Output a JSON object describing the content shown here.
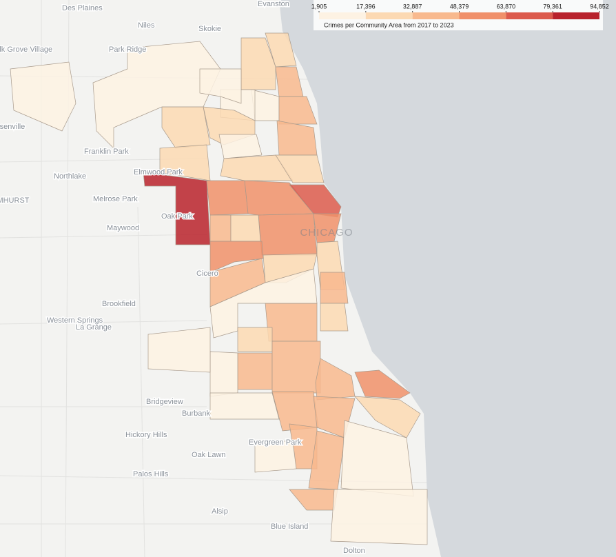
{
  "legend": {
    "title": "Crimes per Community Area from 2017 to 2023",
    "ticks": [
      {
        "value": 1905,
        "label": "1,905"
      },
      {
        "value": 17396,
        "label": "17,396"
      },
      {
        "value": 32887,
        "label": "32,887"
      },
      {
        "value": 48379,
        "label": "48,379"
      },
      {
        "value": 63870,
        "label": "63,870"
      },
      {
        "value": 79361,
        "label": "79,361"
      },
      {
        "value": 94852,
        "label": "94,852"
      }
    ],
    "colors": [
      "#fdf2e3",
      "#fcd9b3",
      "#f8b98e",
      "#f0906a",
      "#dc5a4c",
      "#b8222c"
    ]
  },
  "city_label": "CHICAGO",
  "places": [
    "Des Plaines",
    "Evanston",
    "Niles",
    "Skokie",
    "Elk Grove Village",
    "Park Ridge",
    "Bensenville",
    "Franklin Park",
    "Elmwood Park",
    "Northlake",
    "ELMHURST",
    "Melrose Park",
    "Oak Park",
    "Maywood",
    "Cicero",
    "Brookfield",
    "Western Springs",
    "La Grange",
    "Bridgeview",
    "Burbank",
    "Hickory Hills",
    "Evergreen Park",
    "Oak Lawn",
    "Palos Hills",
    "Alsip",
    "Blue Island",
    "Dolton"
  ],
  "area_values": [
    90000,
    60000,
    56000,
    70000,
    55000,
    50000,
    40000,
    32000,
    50000,
    28000,
    36000,
    30000,
    27000,
    33000,
    16000,
    36000,
    34000,
    14000,
    28000,
    30000,
    15000,
    26000,
    30000,
    12000,
    12000,
    13000,
    22000,
    20000,
    35000,
    38000,
    16000,
    20000,
    40000,
    48000,
    46000,
    24000,
    60000,
    45000,
    43000,
    30000,
    14000,
    17000,
    36000,
    46000,
    15000,
    14000,
    36000,
    12000,
    12000
  ]
}
